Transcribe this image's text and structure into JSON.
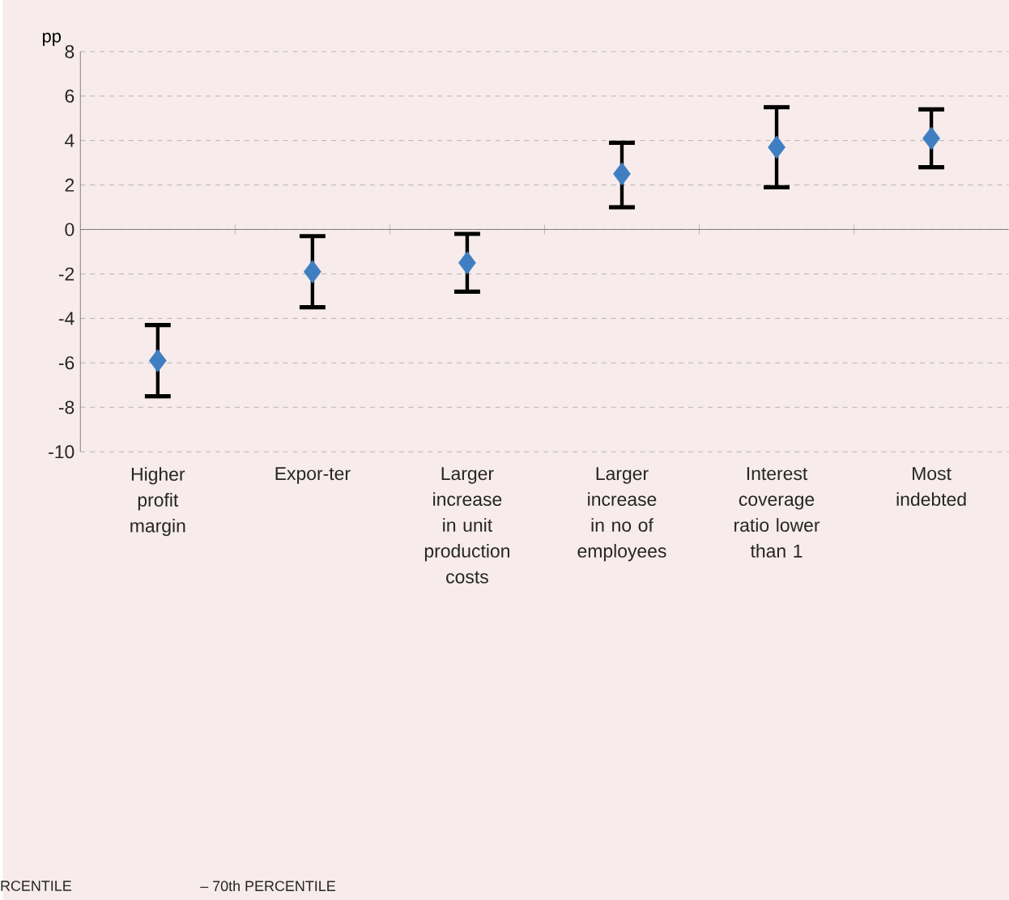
{
  "chart_data": {
    "type": "scatter",
    "ylabel": "pp",
    "categories": [
      "Higher profit margin",
      "Expor-ter",
      "Larger increase in unit production costs",
      "Larger increase in no of employees",
      "Interest coverage ratio lower than 1",
      "Most indebted"
    ],
    "series": [
      {
        "color": "#3f7fc1",
        "values": [
          -5.9,
          -1.9,
          -1.5,
          2.5,
          3.7,
          4.1
        ],
        "errors": [
          [
            -7.5,
            -4.3
          ],
          [
            -3.5,
            -0.3
          ],
          [
            -2.8,
            -0.2
          ],
          [
            1.0,
            3.9
          ],
          [
            1.9,
            5.5
          ],
          [
            2.8,
            5.4
          ]
        ]
      }
    ],
    "ylim": [
      -10,
      8
    ],
    "yticks": [
      -10,
      -8,
      -6,
      -4,
      -2,
      0,
      2,
      4,
      6,
      8
    ],
    "grid": "y",
    "marker": "diamond",
    "annotations": [
      "RCENTILE",
      "– 70th PERCENTILE"
    ]
  }
}
